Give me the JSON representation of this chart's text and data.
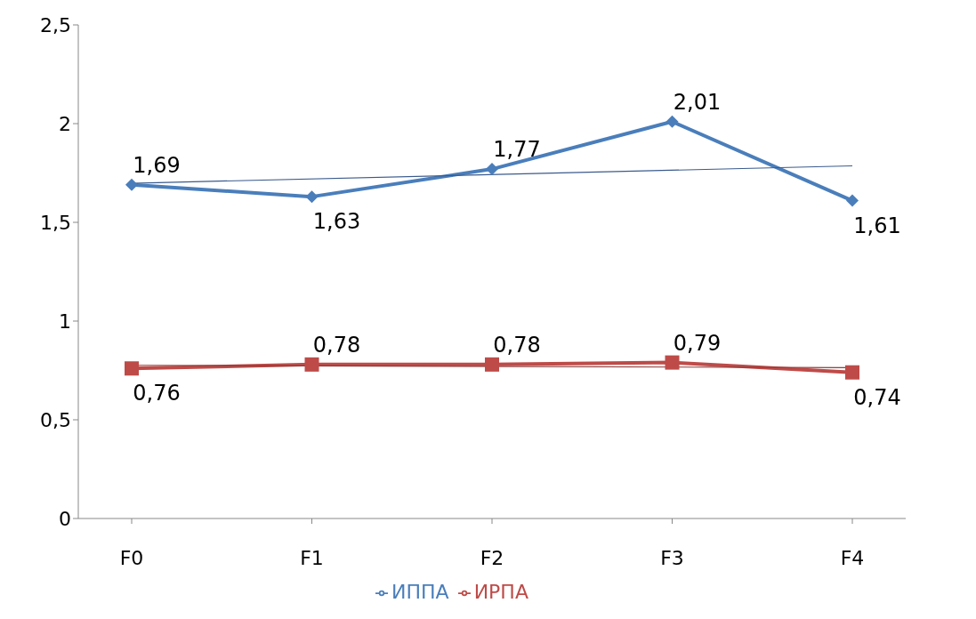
{
  "chart_data": {
    "type": "line",
    "categories": [
      "F0",
      "F1",
      "F2",
      "F3",
      "F4"
    ],
    "series": [
      {
        "name": "ИППА",
        "color": "#4a7ebb",
        "values": [
          1.69,
          1.63,
          1.77,
          2.01,
          1.61
        ],
        "value_labels": [
          "1,69",
          "1,63",
          "1,77",
          "2,01",
          "1,61"
        ],
        "marker": "diamond"
      },
      {
        "name": "ИРПА",
        "color": "#be4b48",
        "values": [
          0.76,
          0.78,
          0.78,
          0.79,
          0.74
        ],
        "value_labels": [
          "0,76",
          "0,78",
          "0,78",
          "0,79",
          "0,74"
        ],
        "marker": "square"
      },
      {
        "type": "line",
        "color": "#3a5a8c",
        "x": [
          "F0",
          "F4"
        ],
        "values": [
          1.698,
          1.786
        ],
        "marker": "none"
      },
      {
        "type": "line",
        "color": "#8c3a38",
        "x": [
          "F0",
          "F4"
        ],
        "values": [
          0.776,
          0.764
        ],
        "marker": "none"
      }
    ],
    "ylim": [
      0,
      2.5
    ],
    "yticks": [
      0,
      {
        "value": 0.5,
        "label": "0,5"
      },
      1,
      {
        "value": 1.5,
        "label": "1,5"
      },
      2,
      {
        "value": 2.5,
        "label": "2,5"
      }
    ],
    "legend": "bottom"
  }
}
